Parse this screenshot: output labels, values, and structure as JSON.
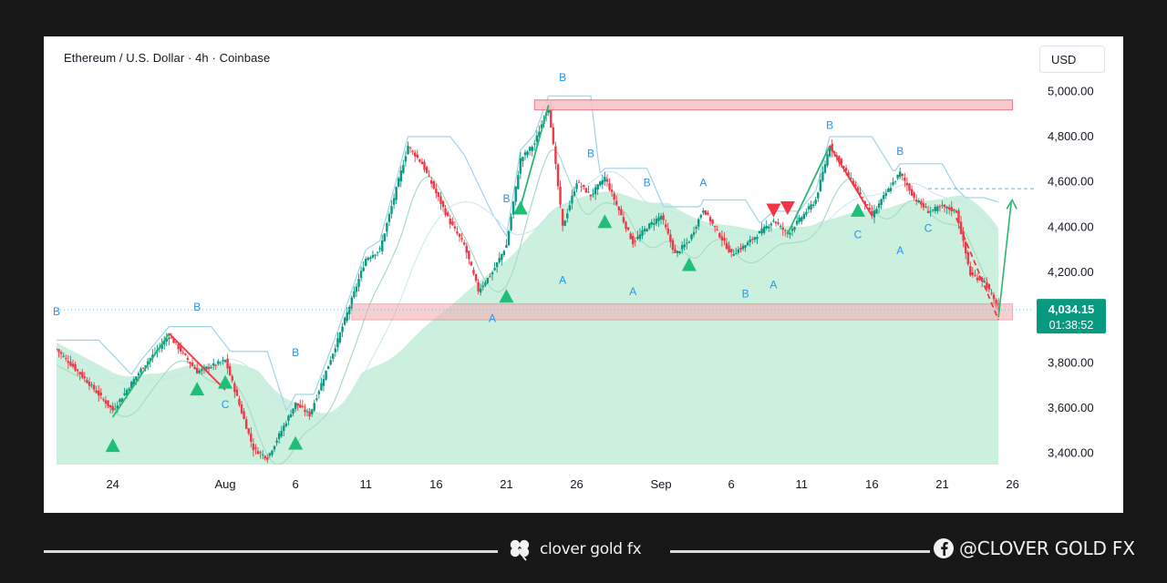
{
  "header": {
    "title": "Ethereum / U.S. Dollar · 4h · Coinbase",
    "currency": "USD"
  },
  "price_badge": {
    "price": "4,034.15",
    "countdown": "01:38:52",
    "color": "#089981"
  },
  "footer": {
    "brand": "clover gold fx",
    "social": "@CLOVER GOLD FX",
    "brand_icon": "clover-icon",
    "social_icon": "facebook-icon"
  },
  "colors": {
    "up": "#089981",
    "down": "#f23645",
    "zone": "#f7a9ae",
    "wave_label": "#2196f3"
  },
  "chart_data": {
    "type": "candlestick",
    "title": "Ethereum / U.S. Dollar · 4h · Coinbase",
    "ylim": [
      3350,
      5090
    ],
    "xlim": [
      "2025-07-20",
      "2025-09-27"
    ],
    "y_ticks": [
      "5,000.00",
      "4,800.00",
      "4,600.00",
      "4,400.00",
      "4,200.00",
      "3,800.00",
      "3,600.00",
      "3,400.00"
    ],
    "y_tick_values": [
      5000,
      4800,
      4600,
      4400,
      4200,
      3800,
      3600,
      3400
    ],
    "x_ticks": [
      "24",
      "Aug",
      "6",
      "11",
      "16",
      "21",
      "26",
      "Sep",
      "6",
      "11",
      "16",
      "21",
      "26"
    ],
    "x_tick_dates": [
      "2025-07-24",
      "2025-08-01",
      "2025-08-06",
      "2025-08-11",
      "2025-08-16",
      "2025-08-21",
      "2025-08-26",
      "2025-09-01",
      "2025-09-06",
      "2025-09-11",
      "2025-09-16",
      "2025-09-21",
      "2025-09-26"
    ],
    "last_price": 4034.15,
    "close_path": [
      [
        "2025-07-20",
        3860
      ],
      [
        "2025-07-22",
        3730
      ],
      [
        "2025-07-24",
        3590
      ],
      [
        "2025-07-26",
        3770
      ],
      [
        "2025-07-28",
        3920
      ],
      [
        "2025-07-30",
        3760
      ],
      [
        "2025-08-01",
        3810
      ],
      [
        "2025-08-03",
        3420
      ],
      [
        "2025-08-04",
        3380
      ],
      [
        "2025-08-06",
        3620
      ],
      [
        "2025-08-07",
        3570
      ],
      [
        "2025-08-09",
        3900
      ],
      [
        "2025-08-11",
        4260
      ],
      [
        "2025-08-12",
        4300
      ],
      [
        "2025-08-14",
        4760
      ],
      [
        "2025-08-15",
        4680
      ],
      [
        "2025-08-17",
        4420
      ],
      [
        "2025-08-18",
        4320
      ],
      [
        "2025-08-19",
        4120
      ],
      [
        "2025-08-20",
        4200
      ],
      [
        "2025-08-21",
        4320
      ],
      [
        "2025-08-22",
        4700
      ],
      [
        "2025-08-23",
        4770
      ],
      [
        "2025-08-24",
        4940
      ],
      [
        "2025-08-25",
        4400
      ],
      [
        "2025-08-26",
        4600
      ],
      [
        "2025-08-27",
        4540
      ],
      [
        "2025-08-28",
        4620
      ],
      [
        "2025-08-30",
        4330
      ],
      [
        "2025-08-31",
        4400
      ],
      [
        "2025-09-01",
        4450
      ],
      [
        "2025-09-02",
        4280
      ],
      [
        "2025-09-03",
        4340
      ],
      [
        "2025-09-04",
        4480
      ],
      [
        "2025-09-06",
        4280
      ],
      [
        "2025-09-07",
        4320
      ],
      [
        "2025-09-09",
        4430
      ],
      [
        "2025-09-10",
        4370
      ],
      [
        "2025-09-12",
        4520
      ],
      [
        "2025-09-13",
        4760
      ],
      [
        "2025-09-15",
        4560
      ],
      [
        "2025-09-16",
        4450
      ],
      [
        "2025-09-17",
        4550
      ],
      [
        "2025-09-18",
        4640
      ],
      [
        "2025-09-19",
        4530
      ],
      [
        "2025-09-20",
        4470
      ],
      [
        "2025-09-21",
        4490
      ],
      [
        "2025-09-22",
        4470
      ],
      [
        "2025-09-23",
        4190
      ],
      [
        "2025-09-24",
        4160
      ],
      [
        "2025-09-25",
        4034.15
      ]
    ],
    "resistance_zone": {
      "low": 4918,
      "high": 4962,
      "from": "2025-08-23",
      "to": "2025-09-26"
    },
    "support_zone": {
      "low": 3990,
      "high": 4060,
      "from": "2025-08-10",
      "to": "2025-09-26"
    },
    "target_line": 4570,
    "wave_labels": [
      {
        "text": "B",
        "date": "2025-07-20",
        "price": 4010
      },
      {
        "text": "B",
        "date": "2025-07-30",
        "price": 4030
      },
      {
        "text": "B",
        "date": "2025-08-06",
        "price": 3830
      },
      {
        "text": "C",
        "date": "2025-08-01",
        "price": 3600
      },
      {
        "text": "A",
        "date": "2025-08-20",
        "price": 3980
      },
      {
        "text": "B",
        "date": "2025-08-21",
        "price": 4510
      },
      {
        "text": "B",
        "date": "2025-08-25",
        "price": 5045
      },
      {
        "text": "B",
        "date": "2025-08-27",
        "price": 4710
      },
      {
        "text": "A",
        "date": "2025-08-25",
        "price": 4150
      },
      {
        "text": "B",
        "date": "2025-08-31",
        "price": 4580
      },
      {
        "text": "A",
        "date": "2025-08-30",
        "price": 4100
      },
      {
        "text": "A",
        "date": "2025-09-04",
        "price": 4580
      },
      {
        "text": "B",
        "date": "2025-09-07",
        "price": 4090
      },
      {
        "text": "A",
        "date": "2025-09-09",
        "price": 4130
      },
      {
        "text": "B",
        "date": "2025-09-13",
        "price": 4835
      },
      {
        "text": "B",
        "date": "2025-09-18",
        "price": 4720
      },
      {
        "text": "C",
        "date": "2025-09-15",
        "price": 4350
      },
      {
        "text": "A",
        "date": "2025-09-18",
        "price": 4280
      },
      {
        "text": "C",
        "date": "2025-09-20",
        "price": 4380
      }
    ]
  }
}
